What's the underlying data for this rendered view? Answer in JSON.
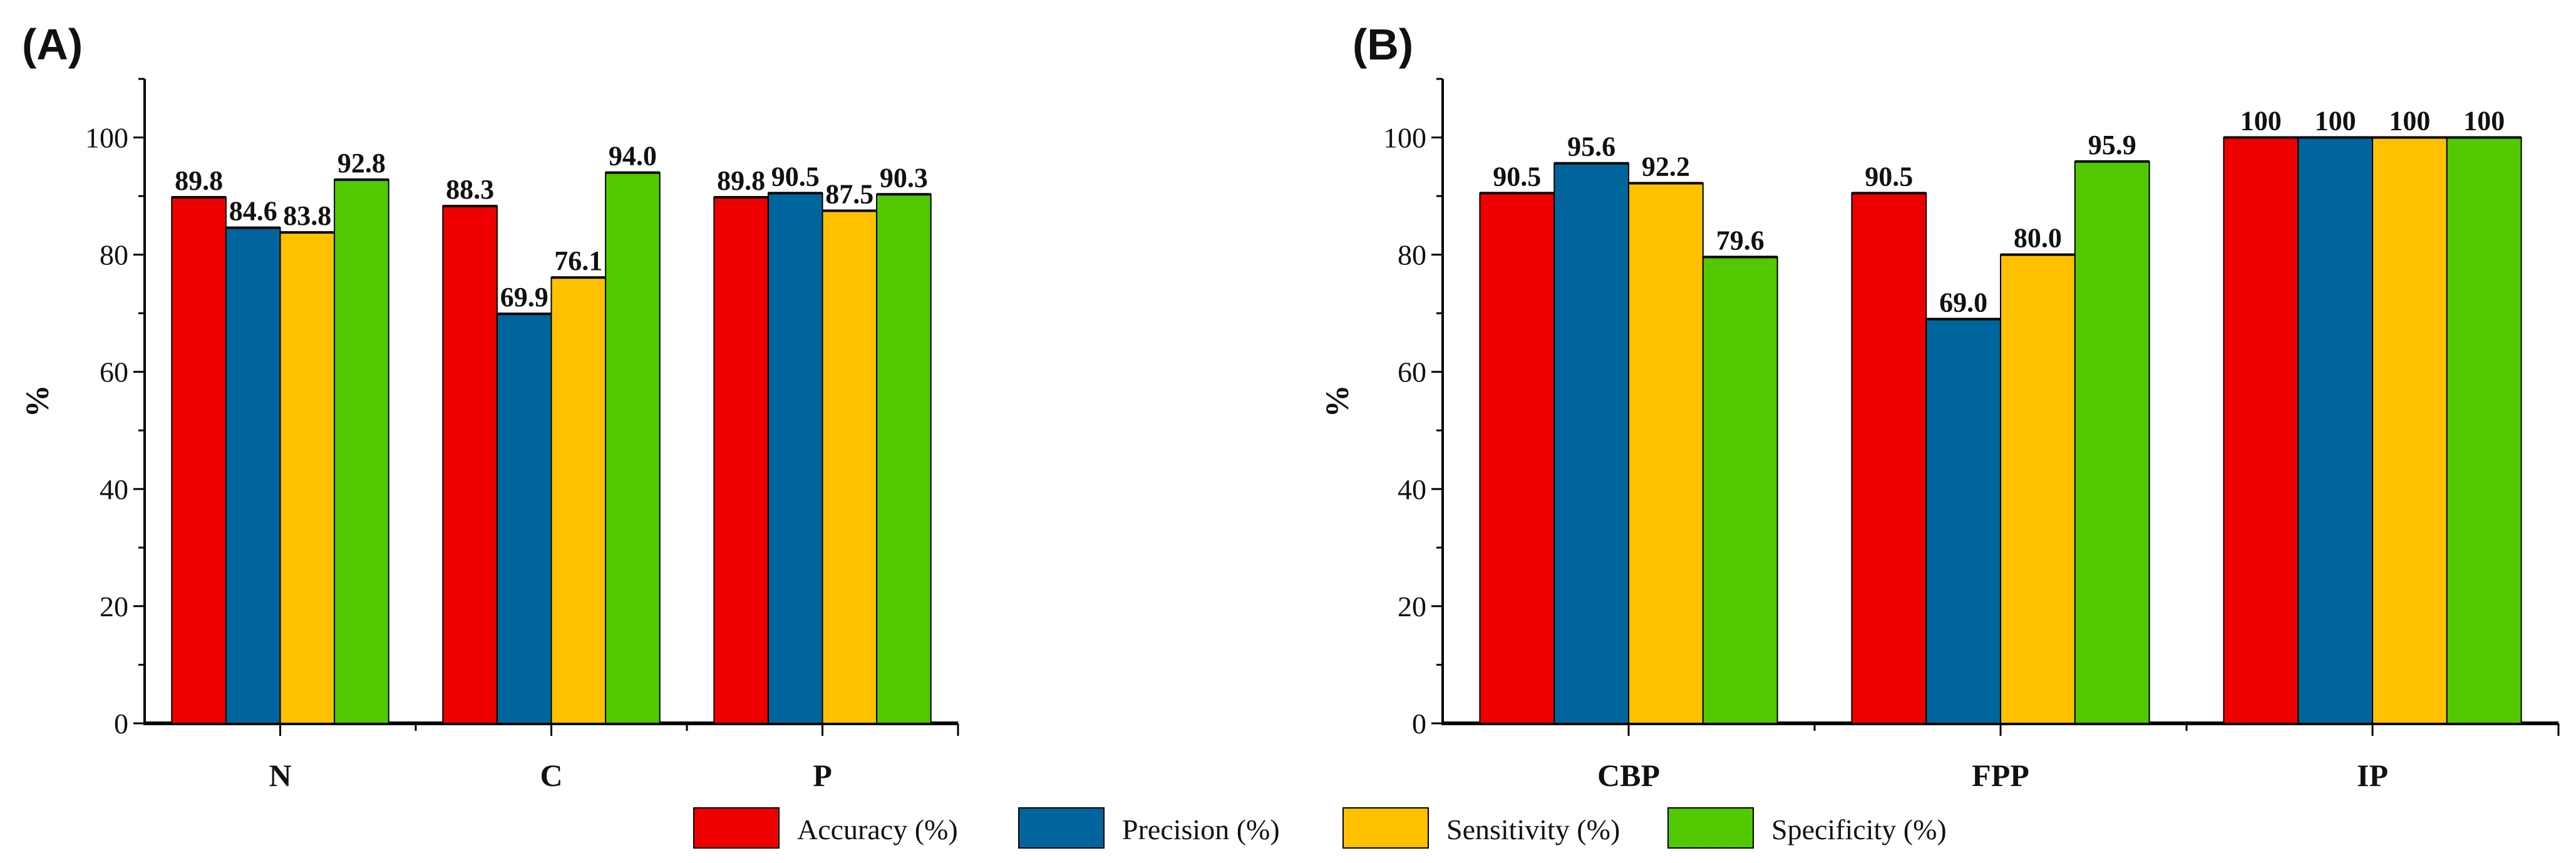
{
  "chart_data": [
    {
      "type": "bar",
      "panel_label": "(A)",
      "categories": [
        "N",
        "C",
        "P"
      ],
      "ylabel": "%",
      "xlabel": "",
      "ylim": [
        0,
        110
      ],
      "yticks": [
        0,
        20,
        40,
        60,
        80,
        100
      ],
      "series": [
        {
          "name": "Accuracy (%)",
          "values": [
            89.8,
            88.3,
            89.8
          ],
          "labels": [
            "89.8",
            "88.3",
            "89.8"
          ]
        },
        {
          "name": "Precision (%)",
          "values": [
            84.6,
            69.9,
            90.5
          ],
          "labels": [
            "84.6",
            "69.9",
            "90.5"
          ]
        },
        {
          "name": "Sensitivity (%)",
          "values": [
            83.8,
            76.1,
            87.5
          ],
          "labels": [
            "83.8",
            "76.1",
            "87.5"
          ]
        },
        {
          "name": "Specificity (%)",
          "values": [
            92.8,
            94.0,
            90.3
          ],
          "labels": [
            "92.8",
            "94.0",
            "90.3"
          ]
        }
      ]
    },
    {
      "type": "bar",
      "panel_label": "(B)",
      "categories": [
        "CBP",
        "FPP",
        "IP"
      ],
      "ylabel": "%",
      "xlabel": "",
      "ylim": [
        0,
        110
      ],
      "yticks": [
        0,
        20,
        40,
        60,
        80,
        100
      ],
      "series": [
        {
          "name": "Accuracy (%)",
          "values": [
            90.5,
            90.5,
            100
          ],
          "labels": [
            "90.5",
            "90.5",
            "100"
          ]
        },
        {
          "name": "Precision (%)",
          "values": [
            95.6,
            69.0,
            100
          ],
          "labels": [
            "95.6",
            "69.0",
            "100"
          ]
        },
        {
          "name": "Sensitivity (%)",
          "values": [
            92.2,
            80.0,
            100
          ],
          "labels": [
            "92.2",
            "80.0",
            "100"
          ]
        },
        {
          "name": "Specificity (%)",
          "values": [
            79.6,
            95.9,
            100
          ],
          "labels": [
            "79.6",
            "95.9",
            "100"
          ]
        }
      ]
    }
  ],
  "legend": {
    "placement": "bottom-center",
    "items": [
      {
        "label": "Accuracy (%)",
        "color": "#EE0000"
      },
      {
        "label": "Precision (%)",
        "color": "#00659C"
      },
      {
        "label": "Sensitivity (%)",
        "color": "#FFC000"
      },
      {
        "label": "Specificity (%)",
        "color": "#52C800"
      }
    ]
  }
}
